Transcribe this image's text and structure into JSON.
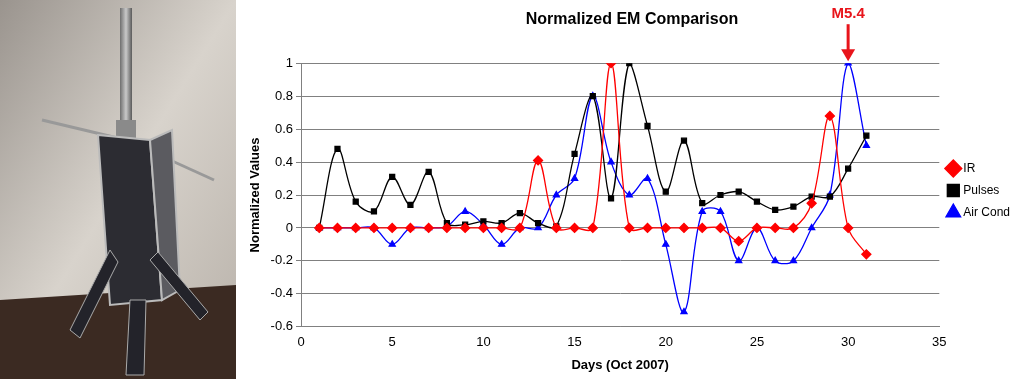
{
  "chart_data": {
    "type": "line",
    "title": "Normalized EM Comparison",
    "x_label": "Days (Oct 2007)",
    "y_label": "Normalized Values",
    "x": [
      1,
      2,
      3,
      4,
      5,
      6,
      7,
      8,
      9,
      10,
      11,
      12,
      13,
      14,
      15,
      16,
      17,
      18,
      19,
      20,
      21,
      22,
      23,
      24,
      25,
      26,
      27,
      28,
      29,
      30,
      31
    ],
    "series": [
      {
        "name": "IR",
        "color": "#ff0000",
        "marker": "diamond",
        "line_style": "solid",
        "values": [
          0,
          0,
          0,
          0,
          0,
          0,
          0,
          0,
          0,
          0,
          0,
          0,
          0.41,
          0,
          0,
          0,
          1,
          0,
          0,
          0,
          0,
          0,
          0,
          -0.08,
          0,
          0,
          0,
          0.15,
          0.68,
          0,
          -0.16
        ]
      },
      {
        "name": "Pulses",
        "color": "#000000",
        "marker": "square",
        "line_style": "solid",
        "values": [
          0,
          0.48,
          0.16,
          0.1,
          0.31,
          0.14,
          0.34,
          0.03,
          0.02,
          0.04,
          0.03,
          0.09,
          0.03,
          0.01,
          0.45,
          0.8,
          0.18,
          1,
          0.62,
          0.22,
          0.53,
          0.15,
          0.2,
          0.22,
          0.16,
          0.11,
          0.13,
          0.19,
          0.19,
          0.36,
          0.56
        ]
      },
      {
        "name": "Air Cond",
        "color": "#0000ff",
        "marker": "triangle",
        "line_style": "solid",
        "values": [
          0,
          0,
          0,
          0,
          -0.1,
          0,
          0,
          0.01,
          0.1,
          0.02,
          -0.1,
          0,
          0,
          0.2,
          0.3,
          0.8,
          0.4,
          0.2,
          0.3,
          -0.1,
          -0.51,
          0.1,
          0.1,
          -0.2,
          0,
          -0.2,
          -0.2,
          0,
          0.2,
          1,
          0.5
        ]
      }
    ],
    "xlim": [
      0,
      35
    ],
    "xticks": [
      0,
      5,
      10,
      15,
      20,
      25,
      30,
      35
    ],
    "ylim": [
      -0.6,
      1
    ],
    "yticks": [
      -0.6,
      -0.4,
      -0.2,
      0,
      0.2,
      0.4,
      0.6,
      0.8,
      1
    ],
    "grid": true,
    "legend": "right",
    "annotations": [
      {
        "text": "M5.4",
        "x": 30,
        "color": "#e8141b"
      }
    ]
  }
}
